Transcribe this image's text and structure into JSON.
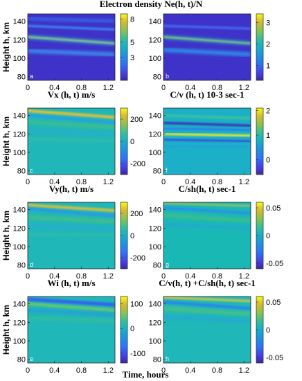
{
  "figure": {
    "xlabel": "Time, hours",
    "ylabel": "Height h, km"
  },
  "chart_data": [
    {
      "type": "heatmap",
      "panel_label": "a",
      "title": "Electron density Ne(h, t)/N",
      "xlabel": "Time, hours",
      "ylabel": "Height h, km",
      "xlim": [
        0,
        1.3
      ],
      "ylim": [
        76,
        148
      ],
      "x_ticks": [
        "0",
        "0.4",
        "0.8",
        "1.2"
      ],
      "y_ticks": [
        "80",
        "100",
        "120",
        "140"
      ],
      "colorbar_ticks": [
        "8",
        "5",
        "3"
      ],
      "clim": [
        0,
        8.7
      ]
    },
    {
      "type": "heatmap",
      "panel_label": "b",
      "title": "",
      "xlabel": "Time, hours",
      "ylabel": "",
      "xlim": [
        0,
        1.3
      ],
      "ylim": [
        76,
        148
      ],
      "x_ticks": [
        "0",
        "0.4",
        "0.8",
        "1.2"
      ],
      "y_ticks": [
        "80",
        "100",
        "120",
        "140"
      ],
      "colorbar_ticks": [
        "3",
        "2",
        "1"
      ],
      "clim": [
        0.3,
        3.4
      ]
    },
    {
      "type": "heatmap",
      "panel_label": "c",
      "title": "Vx (h, t) m/s",
      "xlabel": "Time, hours",
      "ylabel": "Height h, km",
      "xlim": [
        0,
        1.3
      ],
      "ylim": [
        76,
        148
      ],
      "x_ticks": [
        "0",
        "0.4",
        "0.8",
        "1.2"
      ],
      "y_ticks": [
        "80",
        "100",
        "120",
        "140"
      ],
      "colorbar_ticks": [
        "200",
        "0",
        "-200"
      ],
      "clim": [
        -300,
        300
      ]
    },
    {
      "type": "heatmap",
      "panel_label": "f",
      "title": "C/v (h, t)  10-3 sec-1",
      "xlabel": "Time, hours",
      "ylabel": "",
      "xlim": [
        0,
        1.3
      ],
      "ylim": [
        76,
        148
      ],
      "x_ticks": [
        "0",
        "0.4",
        "0.8",
        "1.2"
      ],
      "y_ticks": [
        "80",
        "100",
        "120",
        "140"
      ],
      "colorbar_ticks": [
        "2",
        "1",
        "0"
      ],
      "clim": [
        -0.6,
        2.1
      ]
    },
    {
      "type": "heatmap",
      "panel_label": "d",
      "title": "Vy(h, t) m/s",
      "xlabel": "Time, hours",
      "ylabel": "Height h, km",
      "xlim": [
        0,
        1.3
      ],
      "ylim": [
        76,
        148
      ],
      "x_ticks": [
        "0",
        "0.4",
        "0.8",
        "1.2"
      ],
      "y_ticks": [
        "80",
        "100",
        "120",
        "140"
      ],
      "colorbar_ticks": [
        "200",
        "0",
        "-200"
      ],
      "clim": [
        -300,
        300
      ]
    },
    {
      "type": "heatmap",
      "panel_label": "g",
      "title": "C/sh(h, t) sec-1",
      "xlabel": "Time, hours",
      "ylabel": "",
      "xlim": [
        0,
        1.3
      ],
      "ylim": [
        76,
        148
      ],
      "x_ticks": [
        "0",
        "0.4",
        "0.8",
        "1.2"
      ],
      "y_ticks": [
        "80",
        "100",
        "120",
        "140"
      ],
      "colorbar_ticks": [
        "0.05",
        "0",
        "-0.05"
      ],
      "clim": [
        -0.06,
        0.06
      ]
    },
    {
      "type": "heatmap",
      "panel_label": "e",
      "title": "Wi (h, t) m/s",
      "xlabel": "Time, hours",
      "ylabel": "Height h, km",
      "xlim": [
        0,
        1.3
      ],
      "ylim": [
        76,
        148
      ],
      "x_ticks": [
        "0",
        "0.4",
        "0.8",
        "1.2"
      ],
      "y_ticks": [
        "80",
        "100",
        "120",
        "140"
      ],
      "colorbar_ticks": [
        "100",
        "0",
        "-100"
      ],
      "clim": [
        -140,
        130
      ]
    },
    {
      "type": "heatmap",
      "panel_label": "h",
      "title": "C/v(h, t) +C/sh(h, t) sec-1",
      "xlabel": "Time, hours",
      "ylabel": "",
      "xlim": [
        0,
        1.3
      ],
      "ylim": [
        76,
        148
      ],
      "x_ticks": [
        "0",
        "0.4",
        "0.8",
        "1.2"
      ],
      "y_ticks": [
        "80",
        "100",
        "120",
        "140"
      ],
      "colorbar_ticks": [
        "0.05",
        "0",
        "-0.05"
      ],
      "clim": [
        -0.06,
        0.06
      ]
    }
  ]
}
